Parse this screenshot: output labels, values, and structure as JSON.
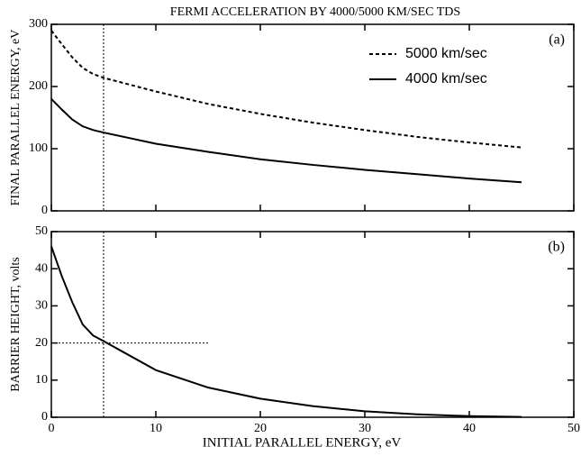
{
  "chart_data": [
    {
      "type": "line",
      "title": "FERMI ACCELERATION BY 4000/5000 KM/SEC TDS",
      "panel_label": "(a)",
      "ylabel": "FINAL PARALLEL ENERGY, eV",
      "x": [
        0,
        1,
        2,
        3,
        4,
        5,
        10,
        15,
        20,
        25,
        30,
        35,
        40,
        45
      ],
      "series": [
        {
          "name": "5000 km/sec",
          "color": "#000000",
          "dash": true,
          "values": [
            290,
            268,
            247,
            230,
            220,
            214,
            192,
            172,
            156,
            142,
            130,
            119,
            110,
            102
          ]
        },
        {
          "name": "4000 km/sec",
          "color": "#000000",
          "dash": false,
          "values": [
            180,
            163,
            147,
            136,
            130,
            126,
            108,
            95,
            83,
            74,
            66,
            59,
            52,
            46
          ]
        }
      ],
      "xlim": [
        0,
        50
      ],
      "xticks": [
        0,
        10,
        20,
        30,
        40,
        50
      ],
      "ylim": [
        0,
        300
      ],
      "yticks": [
        0,
        100,
        200,
        300
      ],
      "vline": 5,
      "legend": "upper right"
    },
    {
      "type": "line",
      "panel_label": "(b)",
      "xlabel": "INITIAL PARALLEL ENERGY, eV",
      "ylabel": "BARRIER HEIGHT, volts",
      "x": [
        0,
        1,
        2,
        3,
        4,
        5,
        10,
        15,
        20,
        25,
        30,
        35,
        40,
        45
      ],
      "series": [
        {
          "color": "#000000",
          "dash": false,
          "values": [
            46,
            38,
            31,
            25,
            22,
            20.5,
            12.7,
            8,
            5,
            3,
            1.6,
            0.8,
            0.3,
            0.1
          ]
        }
      ],
      "xlim": [
        0,
        50
      ],
      "xticks": [
        0,
        10,
        20,
        30,
        40,
        50
      ],
      "ylim": [
        0,
        50
      ],
      "yticks": [
        0,
        10,
        20,
        30,
        40,
        50
      ],
      "vline": 5,
      "hline": {
        "y": 20,
        "x": [
          0,
          15
        ]
      }
    }
  ]
}
